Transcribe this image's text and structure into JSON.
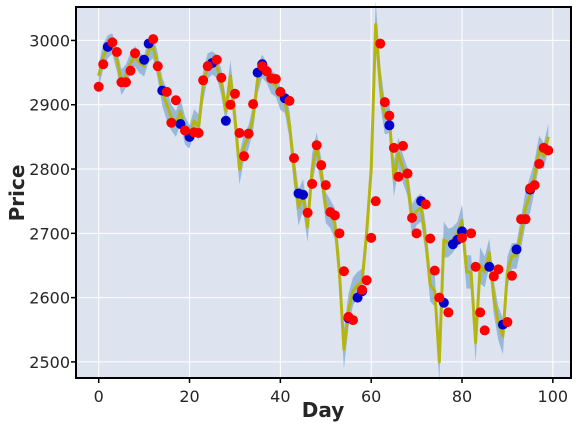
{
  "chart_data": {
    "type": "line",
    "xlabel": "Day",
    "ylabel": "Price",
    "xlim": [
      -5,
      104
    ],
    "ylim": [
      2475,
      3052
    ],
    "x_ticks": [
      0,
      20,
      40,
      60,
      80,
      100
    ],
    "y_ticks": [
      2500,
      2600,
      2700,
      2800,
      2900,
      3000
    ],
    "grid": true,
    "colors": {
      "background": "#dde3ef",
      "grid": "#ffffff",
      "band": "#8fb3d6",
      "line": "#b5b511",
      "sell_marker": "#ff0000",
      "buy_marker": "#0000cc"
    },
    "series": [
      {
        "role": "line",
        "x": [
          0,
          1,
          2,
          3,
          4,
          5,
          6,
          7,
          8,
          9,
          10,
          11,
          12,
          13,
          14,
          15,
          16,
          17,
          18,
          19,
          20,
          21,
          22,
          23,
          24,
          25,
          26,
          27,
          28,
          29,
          30,
          31,
          32,
          33,
          34,
          35,
          36,
          37,
          38,
          39,
          40,
          41,
          42,
          43,
          44,
          45,
          46,
          47,
          48,
          49,
          50,
          51,
          52,
          53,
          54,
          55,
          56,
          57,
          58,
          59,
          60,
          61,
          62,
          63,
          64,
          65,
          66,
          67,
          68,
          69,
          70,
          71,
          72,
          73,
          74,
          75,
          76,
          77,
          78,
          79,
          80,
          81,
          82,
          83,
          84,
          85,
          86,
          87,
          88,
          89,
          90,
          91,
          92,
          93,
          94,
          95,
          96,
          97,
          98,
          99
        ],
        "y": [
          2945,
          2975,
          2990,
          2995,
          2970,
          2935,
          2945,
          2965,
          2975,
          2965,
          2960,
          2985,
          2990,
          2960,
          2920,
          2900,
          2880,
          2870,
          2890,
          2860,
          2850,
          2875,
          2865,
          2930,
          2960,
          2965,
          2960,
          2935,
          2890,
          2945,
          2880,
          2800,
          2835,
          2850,
          2880,
          2940,
          2960,
          2950,
          2935,
          2930,
          2910,
          2905,
          2870,
          2800,
          2740,
          2760,
          2710,
          2800,
          2835,
          2795,
          2740,
          2730,
          2715,
          2640,
          2520,
          2580,
          2610,
          2620,
          2625,
          2700,
          2800,
          3025,
          2930,
          2880,
          2880,
          2785,
          2825,
          2800,
          2780,
          2720,
          2735,
          2740,
          2690,
          2620,
          2610,
          2500,
          2690,
          2685,
          2690,
          2700,
          2720,
          2640,
          2640,
          2530,
          2650,
          2640,
          2670,
          2600,
          2560,
          2540,
          2640,
          2665,
          2665,
          2700,
          2740,
          2760,
          2790,
          2830,
          2820,
          2850
        ],
        "band": [
          18,
          20,
          18,
          16,
          18,
          20,
          18,
          16,
          16,
          16,
          16,
          18,
          18,
          20,
          22,
          24,
          20,
          20,
          20,
          22,
          18,
          18,
          20,
          24,
          20,
          18,
          18,
          20,
          20,
          24,
          26,
          24,
          20,
          18,
          20,
          22,
          18,
          16,
          18,
          18,
          18,
          18,
          22,
          26,
          28,
          24,
          24,
          24,
          22,
          22,
          24,
          22,
          24,
          28,
          30,
          26,
          22,
          20,
          20,
          26,
          30,
          36,
          30,
          26,
          24,
          28,
          24,
          22,
          22,
          26,
          22,
          22,
          24,
          26,
          24,
          32,
          28,
          22,
          20,
          18,
          24,
          26,
          26,
          30,
          28,
          24,
          22,
          26,
          26,
          28,
          24,
          20,
          20,
          24,
          26,
          28,
          24,
          22,
          20,
          20
        ]
      },
      {
        "role": "sell",
        "name": "",
        "points": [
          [
            0,
            2928
          ],
          [
            1,
            2963
          ],
          [
            3,
            2997
          ],
          [
            4,
            2982
          ],
          [
            5,
            2935
          ],
          [
            6,
            2935
          ],
          [
            7,
            2953
          ],
          [
            8,
            2980
          ],
          [
            12,
            3002
          ],
          [
            13,
            2960
          ],
          [
            15,
            2920
          ],
          [
            16,
            2872
          ],
          [
            17,
            2907
          ],
          [
            19,
            2860
          ],
          [
            21,
            2857
          ],
          [
            22,
            2856
          ],
          [
            23,
            2938
          ],
          [
            24,
            2960
          ],
          [
            26,
            2970
          ],
          [
            27,
            2942
          ],
          [
            29,
            2900
          ],
          [
            30,
            2917
          ],
          [
            31,
            2856
          ],
          [
            32,
            2820
          ],
          [
            33,
            2855
          ],
          [
            34,
            2901
          ],
          [
            36,
            2960
          ],
          [
            37,
            2952
          ],
          [
            38,
            2941
          ],
          [
            39,
            2940
          ],
          [
            40,
            2920
          ],
          [
            42,
            2906
          ],
          [
            43,
            2817
          ],
          [
            46,
            2732
          ],
          [
            47,
            2777
          ],
          [
            48,
            2837
          ],
          [
            49,
            2806
          ],
          [
            50,
            2775
          ],
          [
            51,
            2733
          ],
          [
            52,
            2728
          ],
          [
            53,
            2700
          ],
          [
            54,
            2641
          ],
          [
            55,
            2570
          ],
          [
            56,
            2565
          ],
          [
            58,
            2612
          ],
          [
            59,
            2627
          ],
          [
            60,
            2693
          ],
          [
            61,
            2750
          ],
          [
            62,
            2995
          ],
          [
            63,
            2904
          ],
          [
            64,
            2883
          ],
          [
            65,
            2833
          ],
          [
            66,
            2788
          ],
          [
            67,
            2836
          ],
          [
            68,
            2793
          ],
          [
            69,
            2724
          ],
          [
            70,
            2700
          ],
          [
            72,
            2745
          ],
          [
            73,
            2692
          ],
          [
            74,
            2642
          ],
          [
            75,
            2600
          ],
          [
            77,
            2577
          ],
          [
            80,
            2693
          ],
          [
            82,
            2700
          ],
          [
            83,
            2648
          ],
          [
            84,
            2577
          ],
          [
            85,
            2549
          ],
          [
            87,
            2633
          ],
          [
            88,
            2644
          ],
          [
            90,
            2562
          ],
          [
            91,
            2634
          ],
          [
            93,
            2722
          ],
          [
            94,
            2722
          ],
          [
            95,
            2770
          ],
          [
            96,
            2775
          ],
          [
            97,
            2808
          ],
          [
            98,
            2833
          ],
          [
            99,
            2829
          ]
        ]
      },
      {
        "role": "buy",
        "name": "",
        "points": [
          [
            2,
            2990
          ],
          [
            10,
            2970
          ],
          [
            11,
            2995
          ],
          [
            14,
            2922
          ],
          [
            18,
            2870
          ],
          [
            20,
            2850
          ],
          [
            25,
            2965
          ],
          [
            28,
            2875
          ],
          [
            35,
            2950
          ],
          [
            36,
            2963
          ],
          [
            41,
            2910
          ],
          [
            44,
            2762
          ],
          [
            45,
            2760
          ],
          [
            55,
            2568
          ],
          [
            57,
            2600
          ],
          [
            58,
            2610
          ],
          [
            64,
            2868
          ],
          [
            71,
            2750
          ],
          [
            76,
            2592
          ],
          [
            78,
            2683
          ],
          [
            79,
            2690
          ],
          [
            80,
            2703
          ],
          [
            86,
            2648
          ],
          [
            89,
            2558
          ],
          [
            92,
            2675
          ],
          [
            95,
            2768
          ]
        ]
      }
    ]
  }
}
